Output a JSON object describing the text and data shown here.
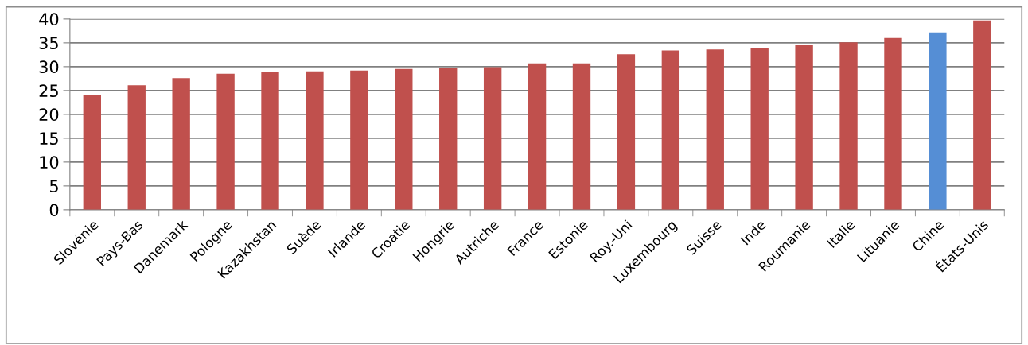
{
  "chart_data": {
    "type": "bar",
    "categories": [
      "Slovénie",
      "Pays-Bas",
      "Danemark",
      "Pologne",
      "Kazakhstan",
      "Suède",
      "Irlande",
      "Croatie",
      "Hongrie",
      "Autriche",
      "France",
      "Estonie",
      "Roy.-Uni",
      "Luxembourg",
      "Suisse",
      "Inde",
      "Roumanie",
      "Italie",
      "Lituanie",
      "Chine",
      "États-Unis"
    ],
    "values": [
      24.0,
      26.1,
      27.6,
      28.5,
      28.8,
      29.0,
      29.2,
      29.5,
      29.7,
      29.9,
      30.7,
      30.7,
      32.6,
      33.4,
      33.6,
      33.8,
      34.6,
      35.1,
      36.0,
      37.2,
      39.7
    ],
    "colors": [
      "#c0504d",
      "#c0504d",
      "#c0504d",
      "#c0504d",
      "#c0504d",
      "#c0504d",
      "#c0504d",
      "#c0504d",
      "#c0504d",
      "#c0504d",
      "#c0504d",
      "#c0504d",
      "#c0504d",
      "#c0504d",
      "#c0504d",
      "#c0504d",
      "#c0504d",
      "#c0504d",
      "#c0504d",
      "#558ed5",
      "#c0504d"
    ],
    "ylim": [
      0,
      40
    ],
    "yticks": [
      0,
      5,
      10,
      15,
      20,
      25,
      30,
      35,
      40
    ],
    "grid": "y"
  }
}
